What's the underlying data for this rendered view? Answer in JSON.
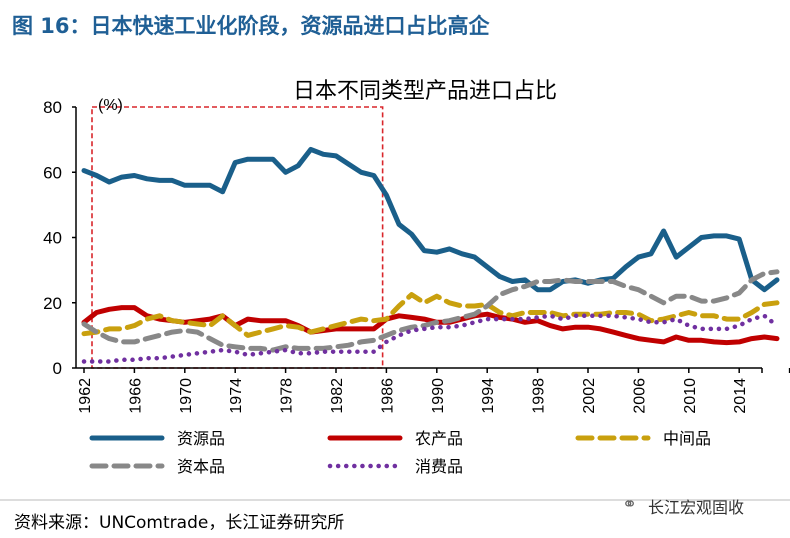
{
  "figure_title": "图 16：日本快速工业化阶段，资源品进口占比高企",
  "source": "资料来源：UNComtrade，长江证券研究所",
  "brand": "长江宏观固收",
  "brand_icon": "wechat-icon",
  "chart_data": {
    "type": "line",
    "title": "日本不同类型产品进口占比",
    "ylabel": "(%)",
    "ylim": [
      0,
      80
    ],
    "yticks": [
      "0",
      "20",
      "40",
      "60",
      "80"
    ],
    "xlim": [
      1962,
      2017
    ],
    "xticks": [
      "1962",
      "1966",
      "1970",
      "1974",
      "1978",
      "1982",
      "1986",
      "1990",
      "1994",
      "1998",
      "2002",
      "2006",
      "2010",
      "2014"
    ],
    "grid": false,
    "legend": "bottom",
    "highlight_box": {
      "x": [
        1962,
        1985.7
      ],
      "y": [
        0,
        80
      ],
      "color": "#d9262b"
    },
    "x": [
      1962,
      1963,
      1964,
      1965,
      1966,
      1967,
      1968,
      1969,
      1970,
      1971,
      1972,
      1973,
      1974,
      1975,
      1976,
      1977,
      1978,
      1979,
      1980,
      1981,
      1982,
      1983,
      1984,
      1985,
      1986,
      1987,
      1988,
      1989,
      1990,
      1991,
      1992,
      1993,
      1994,
      1995,
      1996,
      1997,
      1998,
      1999,
      2000,
      2001,
      2002,
      2003,
      2004,
      2005,
      2006,
      2007,
      2008,
      2009,
      2010,
      2011,
      2012,
      2013,
      2014,
      2015,
      2016,
      2017
    ],
    "series": [
      {
        "name": "资源品",
        "color": "#1a5f8a",
        "style": "solid",
        "values": [
          60.5,
          59,
          57,
          58.5,
          59,
          58,
          57.5,
          57.5,
          56,
          56,
          56,
          54,
          63,
          64,
          64,
          64,
          60,
          62,
          67,
          65.5,
          65,
          62.5,
          60,
          59,
          53,
          44,
          41,
          36,
          35.5,
          36.5,
          35,
          34,
          31,
          28,
          26.5,
          27,
          24,
          24,
          26.5,
          27,
          26,
          27,
          27.5,
          31,
          34,
          35,
          42,
          34,
          37,
          40,
          40.5,
          40.5,
          39.5,
          27,
          24,
          27
        ]
      },
      {
        "name": "农产品",
        "color": "#c00000",
        "style": "solid",
        "values": [
          14,
          17,
          18,
          18.5,
          18.5,
          16,
          15,
          14.5,
          14,
          14.5,
          15,
          16,
          13,
          15,
          14.5,
          14.5,
          14.5,
          13,
          11,
          11.5,
          12,
          12,
          12,
          12,
          15,
          16,
          15.5,
          15,
          14,
          14,
          15,
          16,
          16.5,
          15.5,
          15,
          14,
          14.5,
          13,
          12,
          12.5,
          12.5,
          12,
          11,
          10,
          9,
          8.5,
          8,
          9.5,
          8.5,
          8.5,
          8,
          7.8,
          8,
          9,
          9.5,
          9
        ]
      },
      {
        "name": "中间品",
        "color": "#c9a00e",
        "style": "dash",
        "values": [
          10.5,
          11,
          12,
          12,
          13,
          15,
          16,
          14.5,
          14,
          13.5,
          13,
          16,
          13,
          10,
          11,
          12,
          13,
          12.5,
          11,
          12,
          13,
          14,
          15,
          14.5,
          15,
          19,
          22.5,
          20,
          22,
          20,
          19,
          19,
          19.5,
          17,
          16,
          17,
          17,
          17,
          16,
          16.5,
          16.5,
          16.5,
          17,
          17,
          16.5,
          14.5,
          15,
          16,
          17,
          16,
          16,
          15,
          15,
          17,
          19.5,
          20
        ]
      },
      {
        "name": "资本品",
        "color": "#888888",
        "style": "dash",
        "values": [
          13.5,
          11,
          9,
          8,
          8,
          9,
          10,
          11,
          11.5,
          11,
          9,
          7,
          6.5,
          6,
          6,
          5.5,
          6.5,
          6,
          6,
          6,
          6.5,
          7,
          8,
          8.5,
          10,
          11.5,
          12.5,
          13,
          14,
          14.5,
          15.5,
          16.5,
          19,
          22.5,
          24,
          25,
          26.5,
          26.5,
          27,
          26.5,
          26.5,
          26.5,
          26.5,
          25,
          24,
          22,
          20,
          22,
          22,
          20.5,
          20.5,
          21.5,
          23,
          27,
          29,
          29.5
        ]
      },
      {
        "name": "消费品",
        "color": "#7030a0",
        "style": "dot",
        "values": [
          2,
          2,
          2,
          2.5,
          2.5,
          3,
          3,
          3.5,
          4,
          4.5,
          5,
          5.5,
          5,
          4,
          4.5,
          5,
          5.5,
          4.5,
          4.5,
          5,
          5,
          5,
          5,
          5,
          8,
          10,
          11.5,
          12,
          12.5,
          12.5,
          13,
          14,
          15,
          15,
          15,
          15,
          15.5,
          16,
          15,
          16,
          16,
          16,
          16,
          15.5,
          15,
          14,
          14,
          15,
          13,
          12,
          12,
          12,
          13,
          15,
          16,
          13
        ]
      }
    ]
  }
}
